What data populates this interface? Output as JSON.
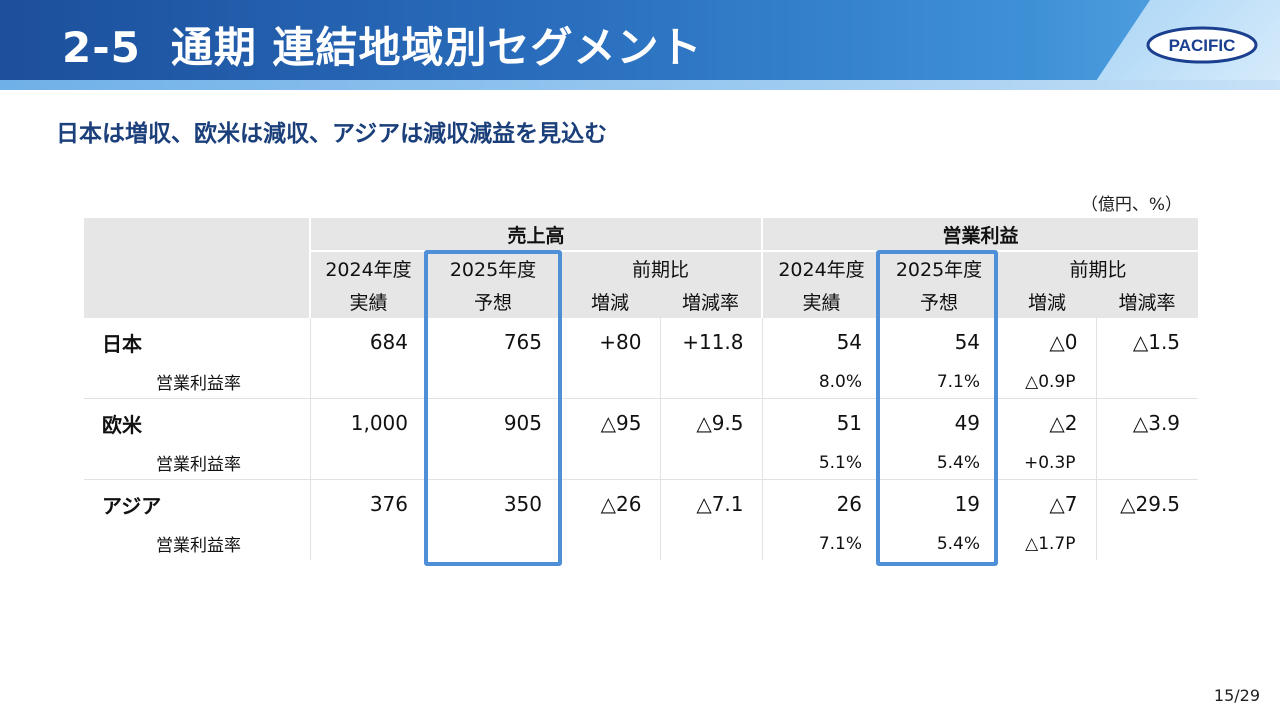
{
  "header": {
    "section_number": "2-5",
    "title": "通期 連結地域別セグメント",
    "logo_text": "PACIFIC",
    "colors": {
      "band": "#2a6fbe",
      "accent_frame": "#4f8fd8",
      "subtitle": "#1b3f7a"
    }
  },
  "subtitle": "日本は増収、欧米は減収、アジアは減収減益を見込む",
  "unit_note": "（億円、%）",
  "table": {
    "groups": {
      "sales": "売上高",
      "operating_profit": "営業利益"
    },
    "col_headers": {
      "fy2024": "2024年度",
      "fy2024_sub": "実績",
      "fy2025": "2025年度",
      "fy2025_sub": "予想",
      "yoy": "前期比",
      "change": "増減",
      "change_rate": "増減率"
    },
    "rows": [
      {
        "region": "日本",
        "sales": {
          "fy2024": "684",
          "fy2025": "765",
          "change": "+80",
          "rate": "+11.8"
        },
        "op": {
          "fy2024": "54",
          "fy2025": "54",
          "change": "△0",
          "rate": "△1.5"
        },
        "margin_label": "営業利益率",
        "margin": {
          "fy2024": "8.0%",
          "fy2025": "7.1%",
          "change": "△0.9P"
        }
      },
      {
        "region": "欧米",
        "sales": {
          "fy2024": "1,000",
          "fy2025": "905",
          "change": "△95",
          "rate": "△9.5"
        },
        "op": {
          "fy2024": "51",
          "fy2025": "49",
          "change": "△2",
          "rate": "△3.9"
        },
        "margin_label": "営業利益率",
        "margin": {
          "fy2024": "5.1%",
          "fy2025": "5.4%",
          "change": "+0.3P"
        }
      },
      {
        "region": "アジア",
        "sales": {
          "fy2024": "376",
          "fy2025": "350",
          "change": "△26",
          "rate": "△7.1"
        },
        "op": {
          "fy2024": "26",
          "fy2025": "19",
          "change": "△7",
          "rate": "△29.5"
        },
        "margin_label": "営業利益率",
        "margin": {
          "fy2024": "7.1%",
          "fy2025": "5.4%",
          "change": "△1.7P"
        }
      }
    ]
  },
  "page_number": "15/29"
}
